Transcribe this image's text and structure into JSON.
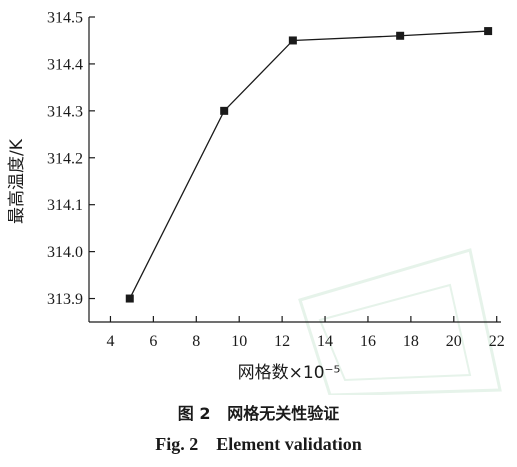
{
  "figure": {
    "caption_cn": "图 2   网格无关性验证",
    "caption_en": "Fig. 2    Element validation"
  },
  "chart_data": {
    "type": "line",
    "title": "",
    "xlabel": "网格数×10⁻⁵",
    "ylabel": "最高温度/K",
    "xlim": [
      3,
      22.2
    ],
    "ylim": [
      313.85,
      314.5
    ],
    "xticks": [
      4,
      6,
      8,
      10,
      12,
      14,
      16,
      18,
      20,
      22
    ],
    "xtick_labels": [
      "4",
      "6",
      "8",
      "10",
      "12",
      "14",
      "16",
      "18",
      "20",
      "22"
    ],
    "yticks": [
      313.9,
      314.0,
      314.1,
      314.2,
      314.3,
      314.4,
      314.5
    ],
    "ytick_labels": [
      "313.9",
      "314.0",
      "314.1",
      "314.2",
      "314.3",
      "314.4",
      "314.5"
    ],
    "grid": false,
    "series": [
      {
        "marker": "square",
        "color": "#1a1a1a",
        "x": [
          4.9,
          9.3,
          12.5,
          17.5,
          21.6
        ],
        "y": [
          313.9,
          314.3,
          314.45,
          314.46,
          314.47
        ]
      }
    ]
  },
  "colors": {
    "ink": "#1a1a1a",
    "watermark": "#e6f3ea"
  }
}
